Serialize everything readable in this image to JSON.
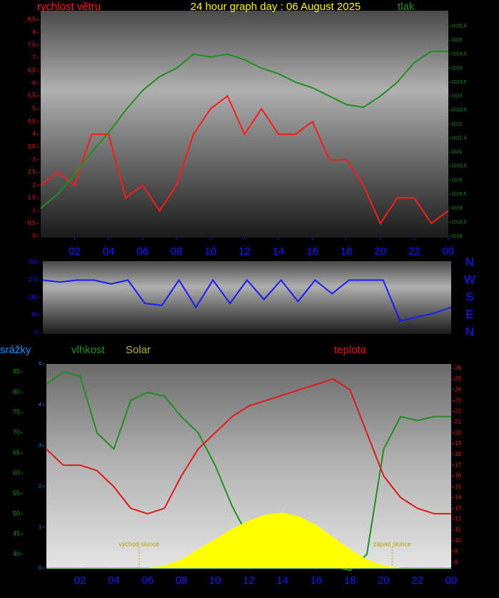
{
  "chart_data": [
    {
      "type": "line",
      "title": "24 hour graph day : 06 August 2025",
      "x": [
        0,
        1,
        2,
        3,
        4,
        5,
        6,
        7,
        8,
        9,
        10,
        11,
        12,
        13,
        14,
        15,
        16,
        17,
        18,
        19,
        20,
        21,
        22,
        23,
        24
      ],
      "xlim": [
        0,
        24
      ],
      "xticks": [
        {
          "value": 2,
          "label": "02"
        },
        {
          "value": 4,
          "label": "04"
        },
        {
          "value": 6,
          "label": "06"
        },
        {
          "value": 8,
          "label": "08"
        },
        10,
        12,
        14,
        16,
        18,
        20,
        22,
        {
          "value": 24,
          "label": "00"
        }
      ],
      "ylim": [
        -0.06,
        8.85
      ],
      "yticks": [
        0,
        {
          "value": 0.5,
          "label": "0,5"
        },
        1,
        {
          "value": 1.5,
          "label": "1,5"
        },
        2,
        {
          "value": 2.5,
          "label": "2,5"
        },
        3,
        {
          "value": 3.5,
          "label": "3,5"
        },
        4,
        {
          "value": 4.5,
          "label": "4,5"
        },
        5,
        {
          "value": 5.5,
          "label": "5,5"
        },
        6,
        {
          "value": 6.5,
          "label": "6,5"
        },
        7,
        {
          "value": 7.5,
          "label": "7,5"
        },
        8,
        {
          "value": 8.5,
          "label": "8,5"
        }
      ],
      "y2lim": [
        1017.95,
        1026.05
      ],
      "y2ticks": [
        1018,
        {
          "value": 1018.5,
          "label": "1018,5"
        },
        1019,
        {
          "value": 1019.5,
          "label": "1019,5"
        },
        1020,
        {
          "value": 1020.5,
          "label": "1020,5"
        },
        1021,
        {
          "value": 1021.5,
          "label": "1021,5"
        },
        1022,
        {
          "value": 1022.5,
          "label": "1022,5"
        },
        1023,
        {
          "value": 1023.5,
          "label": "1023,5"
        },
        1024,
        {
          "value": 1024.5,
          "label": "1024,5"
        },
        1025,
        {
          "value": 1025.5,
          "label": "1025,5"
        }
      ],
      "series": [
        {
          "name": "rychlost větru",
          "color": "#ff1a1a",
          "values": [
            2,
            2.5,
            2,
            4,
            4,
            1.5,
            2,
            1,
            2,
            4,
            5,
            5.5,
            4,
            5,
            4,
            4,
            4.5,
            3,
            3,
            2,
            0.5,
            1.5,
            1.5,
            0.5,
            1
          ]
        },
        {
          "name": "tlak",
          "color": "#1f8f1f",
          "axis": "y2",
          "values": [
            1019,
            1019.5,
            1020.2,
            1021,
            1021.7,
            1022.5,
            1023.2,
            1023.7,
            1024,
            1024.5,
            1024.4,
            1024.5,
            1024.3,
            1024,
            1023.8,
            1023.5,
            1023.3,
            1023,
            1022.7,
            1022.6,
            1023,
            1023.5,
            1024.2,
            1024.6,
            1024.6
          ]
        }
      ]
    },
    {
      "type": "line",
      "x": [
        0,
        1,
        2,
        3,
        4,
        5,
        6,
        7,
        8,
        9,
        10,
        11,
        12,
        13,
        14,
        15,
        16,
        17,
        18,
        19,
        20,
        21,
        22,
        23,
        24
      ],
      "xlim": [
        0,
        24
      ],
      "ylim": [
        -7,
        367
      ],
      "yticks": [
        0,
        90,
        180,
        270,
        360
      ],
      "y2ticks": [
        {
          "value": 360,
          "label": "N"
        },
        {
          "value": 270,
          "label": "W"
        },
        {
          "value": 180,
          "label": "S"
        },
        {
          "value": 90,
          "label": "E"
        },
        {
          "value": 0,
          "label": "N"
        }
      ],
      "series": [
        {
          "color": "#1a1aff",
          "values": [
            270,
            260,
            270,
            270,
            250,
            270,
            150,
            140,
            270,
            130,
            270,
            150,
            270,
            170,
            270,
            160,
            270,
            200,
            270,
            270,
            270,
            60,
            80,
            100,
            130
          ]
        }
      ]
    },
    {
      "type": "line",
      "x": [
        0,
        1,
        2,
        3,
        4,
        5,
        6,
        7,
        8,
        9,
        10,
        11,
        12,
        13,
        14,
        15,
        16,
        17,
        18,
        19,
        20,
        21,
        22,
        23,
        24
      ],
      "xlim": [
        0,
        24
      ],
      "xticks": [
        {
          "value": 2,
          "label": "02"
        },
        {
          "value": 4,
          "label": "04"
        },
        {
          "value": 6,
          "label": "06"
        },
        {
          "value": 8,
          "label": "08"
        },
        10,
        12,
        14,
        16,
        18,
        20,
        22,
        {
          "value": 24,
          "label": "00"
        }
      ],
      "ylim": [
        36.6,
        87
      ],
      "yticks": [
        40,
        45,
        50,
        55,
        60,
        65,
        70,
        75,
        80,
        85
      ],
      "y2lim": [
        7.46,
        26.4
      ],
      "y2ticks": [
        8,
        9,
        10,
        11,
        12,
        13,
        14,
        15,
        16,
        17,
        18,
        19,
        20,
        21,
        22,
        23,
        24,
        25,
        26
      ],
      "y3lim": [
        0,
        5
      ],
      "y3ticks": [
        0,
        1,
        2,
        3,
        4,
        5
      ],
      "y4lim": [
        0,
        1000
      ],
      "annotations": [
        {
          "text": "východ slunce",
          "x": 5.5
        },
        {
          "text": "západ slunce",
          "x": 20.5
        }
      ],
      "series": [
        {
          "name": "srážky",
          "color": "#1e90ff",
          "axis": "y3",
          "values": [
            0,
            0,
            0,
            0,
            0,
            0,
            0,
            0,
            0,
            0,
            0,
            0,
            0,
            0,
            0,
            0,
            0,
            0,
            0,
            0,
            0,
            0,
            0,
            0,
            0
          ]
        },
        {
          "name": "vlhkost",
          "color": "#1f8f1f",
          "values": [
            82,
            85,
            84,
            70,
            66,
            78,
            80,
            79,
            74,
            70,
            62,
            52,
            44,
            42,
            38,
            41,
            40,
            37,
            36,
            40,
            66,
            74,
            73,
            74,
            74
          ]
        },
        {
          "name": "Solar",
          "color": "#ffff00",
          "axis": "y4",
          "area": true,
          "values": [
            0,
            0,
            0,
            0,
            0,
            0,
            0,
            10,
            40,
            90,
            140,
            190,
            230,
            260,
            270,
            250,
            210,
            150,
            90,
            40,
            10,
            0,
            0,
            0,
            0
          ]
        },
        {
          "name": "teplota",
          "color": "#e01a1a",
          "axis": "y2",
          "values": [
            18.5,
            17,
            17,
            16.5,
            15,
            13,
            12.5,
            13,
            16,
            18.5,
            20,
            21.5,
            22.5,
            23,
            23.5,
            24,
            24.5,
            25,
            24,
            20,
            16,
            14,
            13,
            12.5,
            12.5
          ]
        }
      ]
    }
  ]
}
